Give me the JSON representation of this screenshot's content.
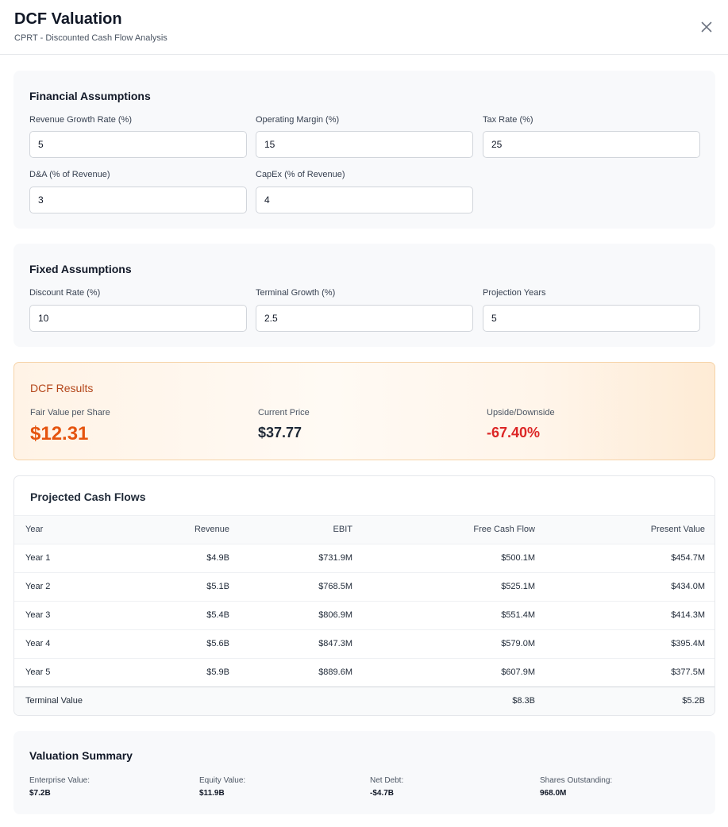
{
  "header": {
    "title": "DCF Valuation",
    "subtitle": "CPRT - Discounted Cash Flow Analysis",
    "close_icon": "close-icon"
  },
  "financial_assumptions": {
    "title": "Financial Assumptions",
    "revenue_growth": {
      "label": "Revenue Growth Rate (%)",
      "value": "5"
    },
    "operating_margin": {
      "label": "Operating Margin (%)",
      "value": "15"
    },
    "tax_rate": {
      "label": "Tax Rate (%)",
      "value": "25"
    },
    "da": {
      "label": "D&A (% of Revenue)",
      "value": "3"
    },
    "capex": {
      "label": "CapEx (% of Revenue)",
      "value": "4"
    }
  },
  "fixed_assumptions": {
    "title": "Fixed Assumptions",
    "discount_rate": {
      "label": "Discount Rate (%)",
      "value": "10"
    },
    "terminal_growth": {
      "label": "Terminal Growth (%)",
      "value": "2.5"
    },
    "projection_years": {
      "label": "Projection Years",
      "value": "5"
    }
  },
  "dcf_results": {
    "title": "DCF Results",
    "fair_value": {
      "label": "Fair Value per Share",
      "value": "$12.31"
    },
    "current_price": {
      "label": "Current Price",
      "value": "$37.77"
    },
    "upside": {
      "label": "Upside/Downside",
      "value": "-67.40%"
    }
  },
  "cash_flows": {
    "title": "Projected Cash Flows",
    "columns": [
      "Year",
      "Revenue",
      "EBIT",
      "Free Cash Flow",
      "Present Value"
    ],
    "rows": [
      [
        "Year 1",
        "$4.9B",
        "$731.9M",
        "$500.1M",
        "$454.7M"
      ],
      [
        "Year 2",
        "$5.1B",
        "$768.5M",
        "$525.1M",
        "$434.0M"
      ],
      [
        "Year 3",
        "$5.4B",
        "$806.9M",
        "$551.4M",
        "$414.3M"
      ],
      [
        "Year 4",
        "$5.6B",
        "$847.3M",
        "$579.0M",
        "$395.4M"
      ],
      [
        "Year 5",
        "$5.9B",
        "$889.6M",
        "$607.9M",
        "$377.5M"
      ]
    ],
    "terminal": {
      "label": "Terminal Value",
      "fcf": "$8.3B",
      "pv": "$5.2B"
    }
  },
  "valuation_summary": {
    "title": "Valuation Summary",
    "enterprise_value": {
      "label": "Enterprise Value:",
      "value": "$7.2B"
    },
    "equity_value": {
      "label": "Equity Value:",
      "value": "$11.9B"
    },
    "net_debt": {
      "label": "Net Debt:",
      "value": "-$4.7B"
    },
    "shares_outstanding": {
      "label": "Shares Outstanding:",
      "value": "968.0M"
    }
  },
  "colors": {
    "accent_orange": "#e5540f",
    "negative_red": "#dc2626",
    "results_title": "#b4461a"
  }
}
